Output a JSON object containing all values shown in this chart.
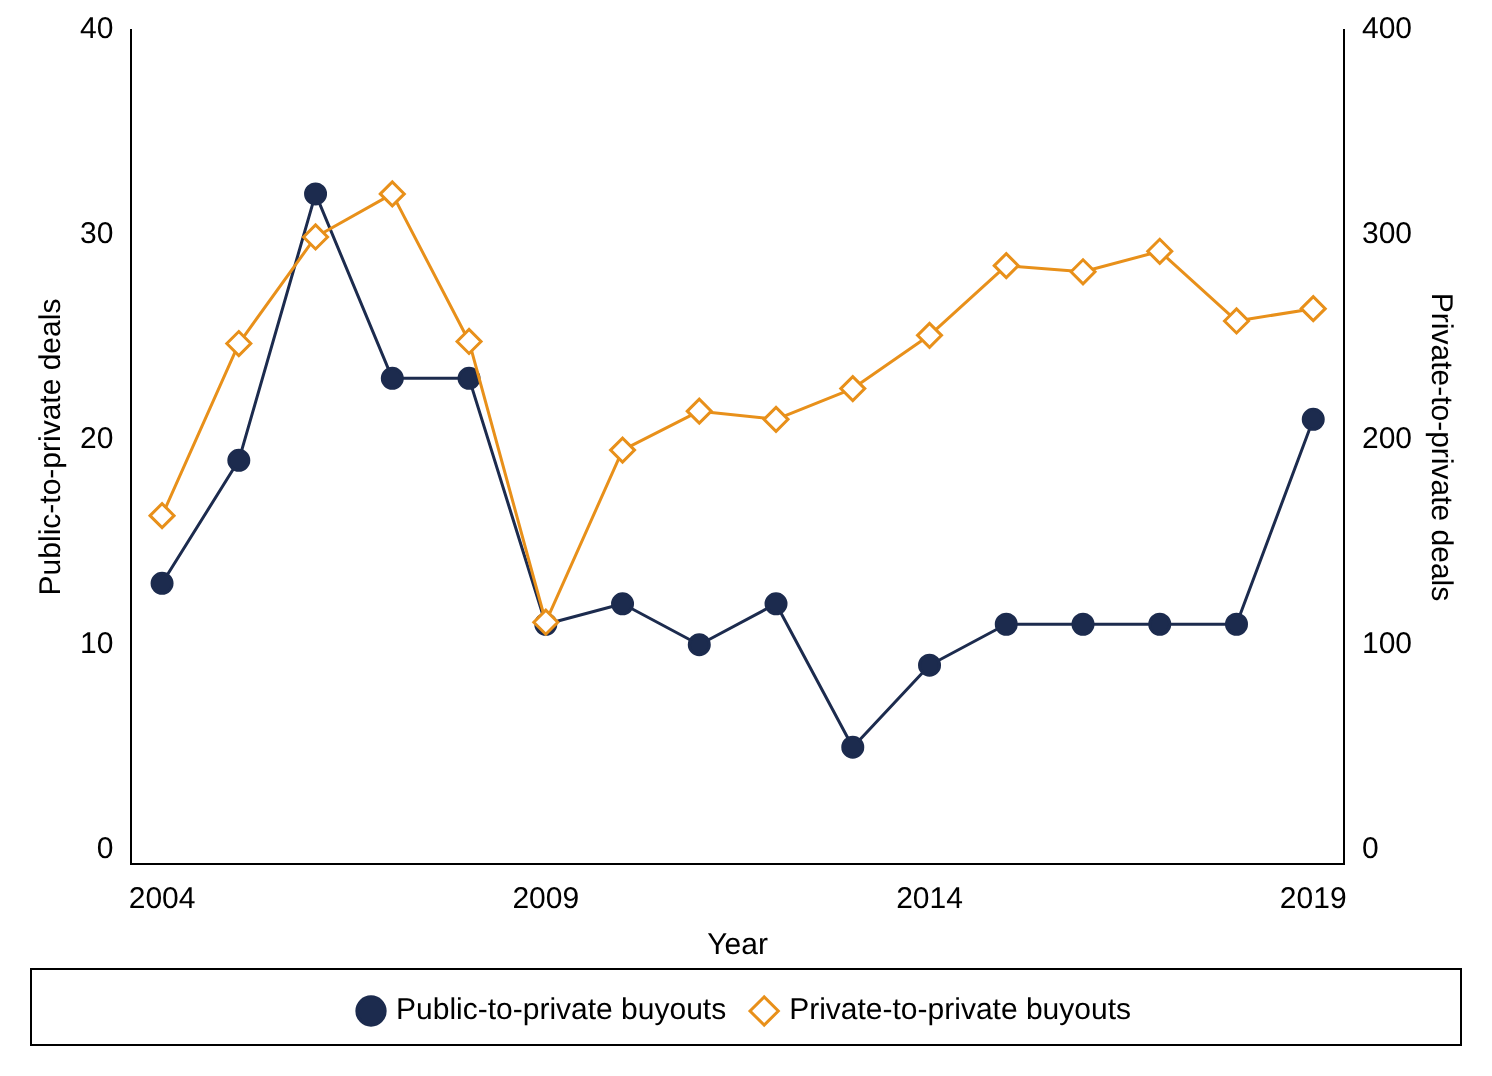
{
  "chart_data": {
    "type": "line",
    "xlabel": "Year",
    "ylabel": "Public-to-private deals",
    "y2label": "Private-to-private deals",
    "x": [
      2004,
      2005,
      2006,
      2007,
      2008,
      2009,
      2010,
      2011,
      2012,
      2013,
      2014,
      2015,
      2016,
      2017,
      2018,
      2019
    ],
    "xlim": [
      2003.6,
      2019.4
    ],
    "xticks": [
      2004,
      2009,
      2014,
      2019
    ],
    "ylim": [
      -0.7,
      40
    ],
    "yticks": [
      0,
      10,
      20,
      30,
      40
    ],
    "y2lim": [
      -7,
      400
    ],
    "y2ticks": [
      0,
      100,
      200,
      300,
      400
    ],
    "series": [
      {
        "name": "Public-to-private buyouts",
        "color": "#1c2b4e",
        "marker": "circle",
        "values": [
          13,
          19,
          32,
          23,
          23,
          11,
          12,
          10,
          12,
          5,
          9,
          11,
          11,
          11,
          11,
          21
        ]
      },
      {
        "name": "Private-to-private buyouts",
        "color": "#e8901a",
        "marker": "diamond",
        "axis": "y2",
        "values": [
          163,
          247,
          299,
          320,
          248,
          111,
          195,
          214,
          210,
          225,
          251,
          285,
          282,
          292,
          258,
          264
        ]
      }
    ],
    "grid": false,
    "legend": "bottom",
    "line_style": "solid"
  }
}
